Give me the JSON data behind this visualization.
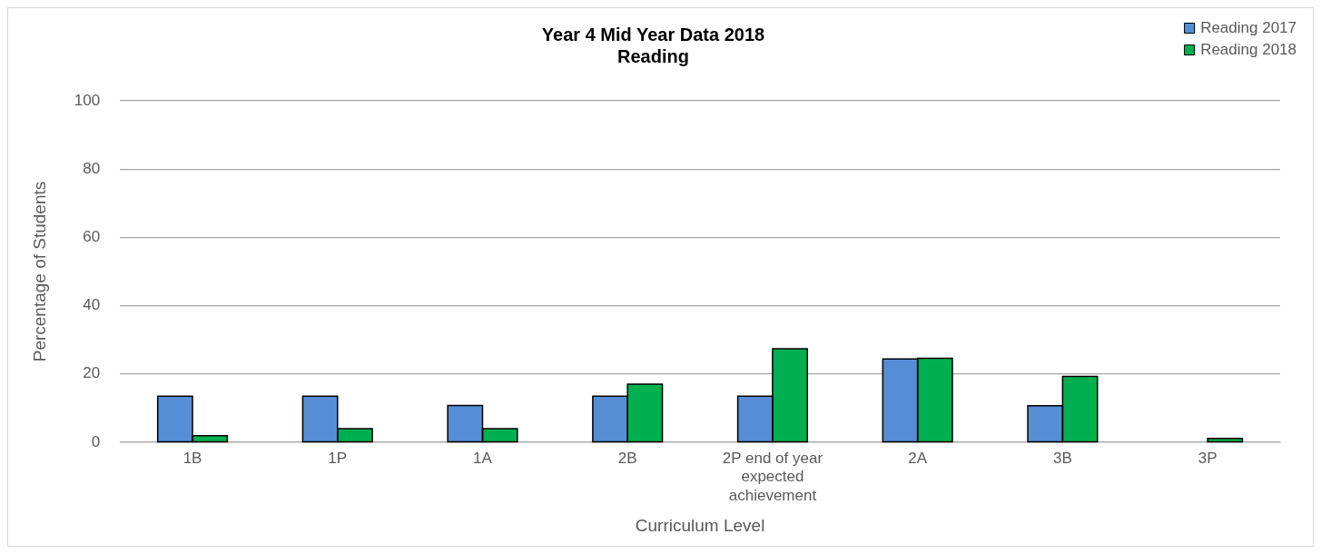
{
  "chart_data": {
    "type": "bar",
    "title": "Year 4 Mid Year Data 2018\nReading",
    "xlabel": "Curriculum Level",
    "ylabel": "Percentage of Students",
    "categories": [
      "1B",
      "1P",
      "1A",
      "2B",
      "2P end of year expected achievement",
      "2A",
      "3B",
      "3P"
    ],
    "series": [
      {
        "name": "Reading 2017",
        "color": "#558ed5",
        "values": [
          13.5,
          13.5,
          10.8,
          13.5,
          13.5,
          24.4,
          10.7,
          0
        ]
      },
      {
        "name": "Reading 2018",
        "color": "#00b050",
        "values": [
          1.9,
          4.0,
          4.0,
          17.0,
          27.4,
          24.6,
          19.3,
          1.1
        ]
      }
    ],
    "ylim": [
      0,
      100
    ],
    "yticks": [
      0,
      20,
      40,
      60,
      80,
      100
    ],
    "grid": "y",
    "legend": "top right"
  }
}
